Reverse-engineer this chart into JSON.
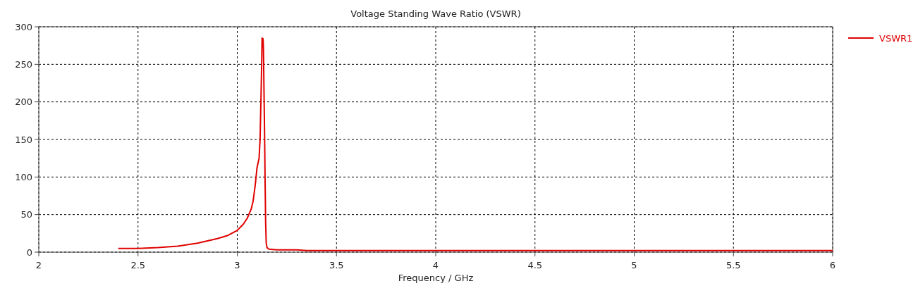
{
  "chart_data": {
    "type": "line",
    "title": "Voltage Standing Wave Ratio (VSWR)",
    "xlabel": "Frequency / GHz",
    "xlim": [
      2,
      6
    ],
    "xticks": [
      2,
      2.5,
      3,
      3.5,
      4,
      4.5,
      5,
      5.5,
      6
    ],
    "ylim": [
      0,
      300
    ],
    "yticks": [
      0,
      50,
      100,
      150,
      200,
      250,
      300
    ],
    "grid": true,
    "legend": "top right",
    "line_style": "solid",
    "series": [
      {
        "name": "VSWR1",
        "color": "#e00000",
        "x": [
          2.4,
          2.5,
          2.6,
          2.7,
          2.8,
          2.85,
          2.9,
          2.95,
          3.0,
          3.03,
          3.05,
          3.07,
          3.08,
          3.09,
          3.1,
          3.11,
          3.115,
          3.12,
          3.123,
          3.125,
          3.13,
          3.132,
          3.135,
          3.138,
          3.14,
          3.143,
          3.146,
          3.15,
          3.16,
          3.2,
          3.3,
          3.35,
          3.4,
          4,
          5,
          6
        ],
        "values": [
          5,
          5,
          6,
          8,
          12,
          15,
          18,
          22,
          29,
          37,
          45,
          57,
          68,
          88,
          113,
          125,
          150,
          210,
          250,
          285,
          284,
          270,
          210,
          150,
          100,
          40,
          12,
          6,
          4,
          3,
          3,
          2,
          2,
          2,
          2,
          2
        ]
      }
    ]
  }
}
